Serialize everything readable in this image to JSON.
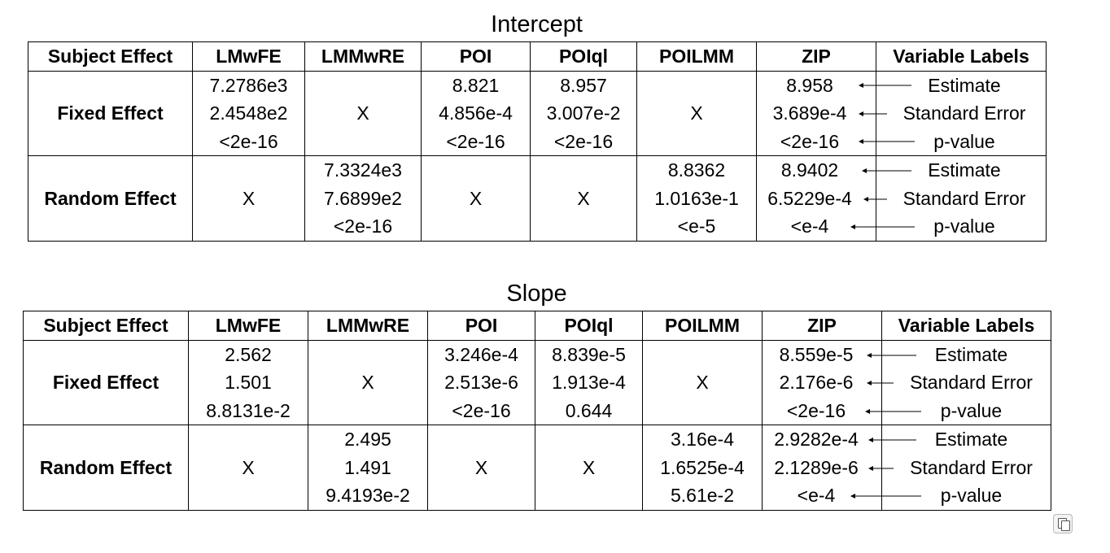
{
  "tables": [
    {
      "title": "Intercept",
      "headers": [
        "Subject Effect",
        "LMwFE",
        "LMMwRE",
        "POI",
        "POIql",
        "POILMM",
        "ZIP",
        "Variable Labels"
      ],
      "rows": [
        {
          "label": "Fixed Effect",
          "cells": [
            [
              "7.2786e3",
              "2.4548e2",
              "<2e-16"
            ],
            [
              "X"
            ],
            [
              "8.821",
              "4.856e-4",
              "<2e-16"
            ],
            [
              "8.957",
              "3.007e-2",
              "<2e-16"
            ],
            [
              "X"
            ],
            [
              "8.958",
              "3.689e-4",
              "<2e-16"
            ]
          ],
          "labels": [
            "Estimate",
            "Standard Error",
            "p-value"
          ]
        },
        {
          "label": "Random Effect",
          "cells": [
            [
              "X"
            ],
            [
              "7.3324e3",
              "7.6899e2",
              "<2e-16"
            ],
            [
              "X"
            ],
            [
              "X"
            ],
            [
              "8.8362",
              "1.0163e-1",
              "<e-5"
            ],
            [
              "8.9402",
              "6.5229e-4",
              "<e-4"
            ]
          ],
          "labels": [
            "Estimate",
            "Standard Error",
            "p-value"
          ]
        }
      ]
    },
    {
      "title": "Slope",
      "headers": [
        "Subject Effect",
        "LMwFE",
        "LMMwRE",
        "POI",
        "POIql",
        "POILMM",
        "ZIP",
        "Variable Labels"
      ],
      "rows": [
        {
          "label": "Fixed Effect",
          "cells": [
            [
              "2.562",
              "1.501",
              "8.8131e-2"
            ],
            [
              "X"
            ],
            [
              "3.246e-4",
              "2.513e-6",
              "<2e-16"
            ],
            [
              "8.839e-5",
              "1.913e-4",
              "0.644"
            ],
            [
              "X"
            ],
            [
              "8.559e-5",
              "2.176e-6",
              "<2e-16"
            ]
          ],
          "labels": [
            "Estimate",
            "Standard Error",
            "p-value"
          ]
        },
        {
          "label": "Random Effect",
          "cells": [
            [
              "X"
            ],
            [
              "2.495",
              "1.491",
              "9.4193e-2"
            ],
            [
              "X"
            ],
            [
              "X"
            ],
            [
              "3.16e-4",
              "1.6525e-4",
              "5.61e-2"
            ],
            [
              "2.9282e-4",
              "2.1289e-6",
              "<e-4"
            ]
          ],
          "labels": [
            "Estimate",
            "Standard Error",
            "p-value"
          ]
        }
      ]
    }
  ],
  "icons": {
    "copy": "copy-icon"
  }
}
